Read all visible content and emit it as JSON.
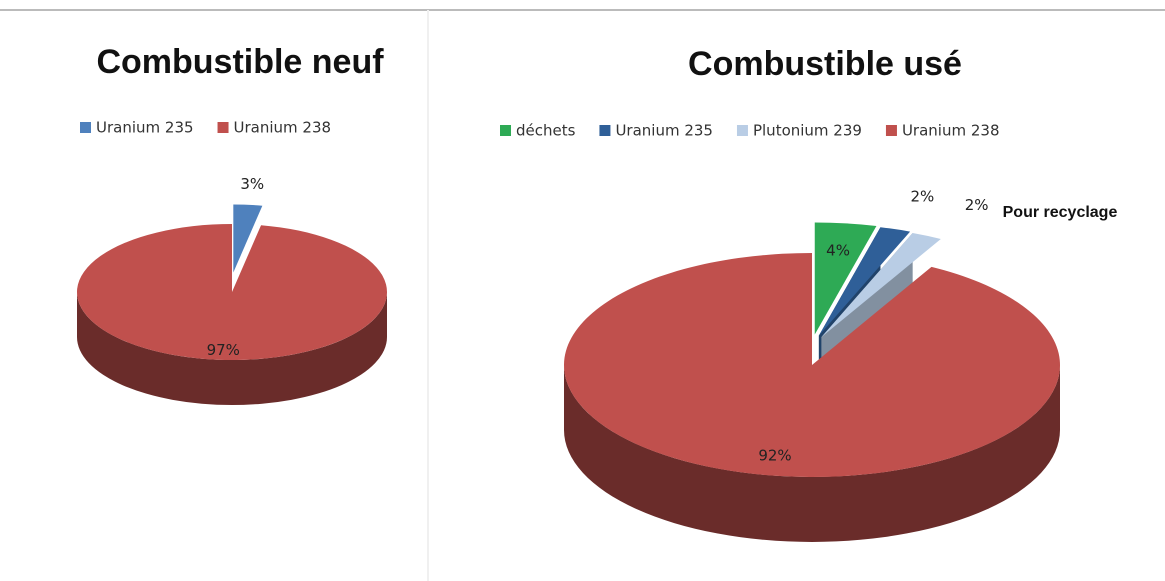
{
  "charts": [
    {
      "type": "pie",
      "title": "Combustible neuf",
      "categories": [
        "Uranium 235",
        "Uranium 238"
      ],
      "values": [
        3,
        97
      ],
      "value_labels": [
        "3%",
        "97%"
      ],
      "colors": [
        "#4f81bd",
        "#c0504d"
      ]
    },
    {
      "type": "pie",
      "title": "Combustible usé",
      "categories": [
        "déchets",
        "Uranium 235",
        "Plutonium 239",
        "Uranium 238"
      ],
      "values": [
        4,
        2,
        2,
        92
      ],
      "value_labels": [
        "4%",
        "2%",
        "2%",
        "92%"
      ],
      "colors": [
        "#2eaa55",
        "#2f5f98",
        "#b9cde5",
        "#c0504d"
      ],
      "annotation": "Pour recyclage"
    }
  ]
}
